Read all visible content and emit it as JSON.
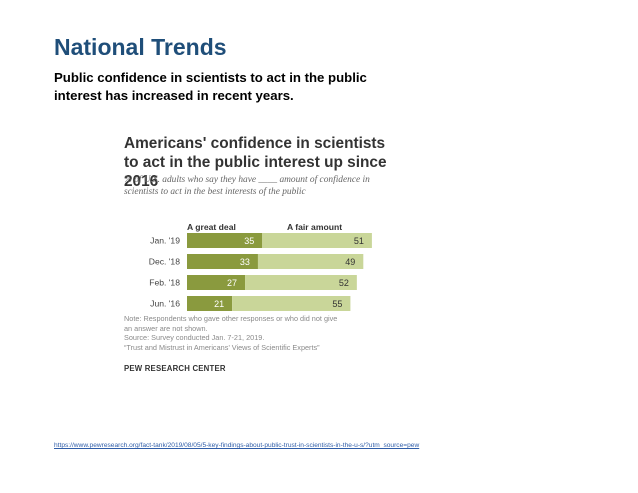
{
  "slide": {
    "title": "National Trends",
    "subtitle": "Public confidence in scientists to act in the public interest has increased in recent years.",
    "source_url": "https://www.pewresearch.org/fact-tank/2019/08/05/5-key-findings-about-public-trust-in-scientists-in-the-u-s/?utm_source=pew"
  },
  "chart_data": {
    "type": "bar",
    "orientation": "horizontal",
    "stacked": true,
    "title": "Americans' confidence in scientists to act in the public interest up since 2016",
    "subtitle": "% of U.S. adults who say they have ____ amount of confidence in scientists to act in the best interests of the public",
    "categories": [
      "Jan. '19",
      "Dec. '18",
      "Feb. '18",
      "Jun. '16"
    ],
    "series": [
      {
        "name": "A great deal",
        "values": [
          35,
          33,
          27,
          21
        ],
        "color": "#8a9a3e"
      },
      {
        "name": "A fair amount",
        "values": [
          51,
          49,
          52,
          55
        ],
        "color": "#c9d699"
      }
    ],
    "xlim": [
      0,
      100
    ],
    "legend_position": "top",
    "notes": [
      "Note: Respondents who gave other responses or who did not give",
      "an answer are not shown.",
      "Source: Survey conducted Jan. 7-21, 2019.",
      "“Trust and Mistrust in Americans’ Views of Scientific Experts”"
    ],
    "source_org": "PEW RESEARCH CENTER"
  }
}
